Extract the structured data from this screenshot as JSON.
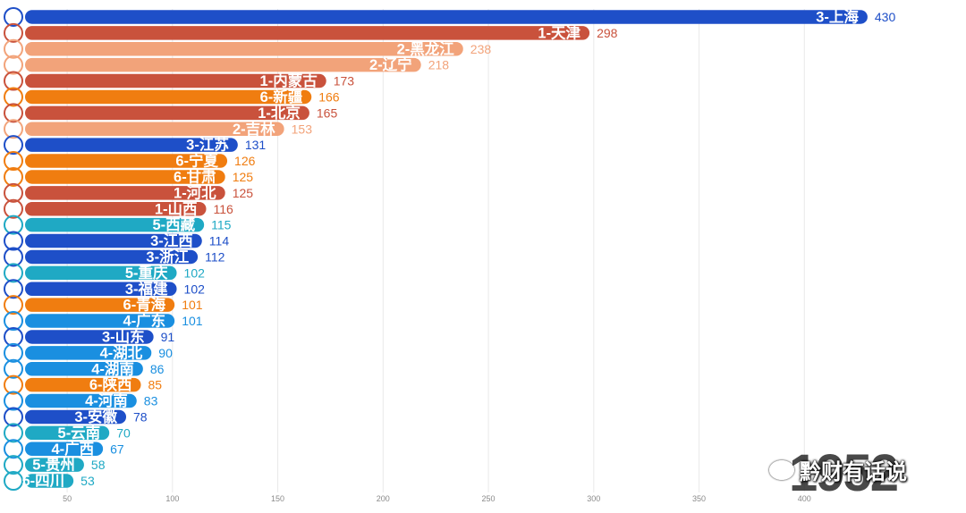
{
  "chart_data": {
    "type": "bar",
    "orientation": "horizontal",
    "xlim": [
      30,
      450
    ],
    "x_ticks": [
      50,
      100,
      150,
      200,
      250,
      300,
      350,
      400
    ],
    "grid": true,
    "categories": [
      "3-上海",
      "1-天津",
      "2-黑龙江",
      "2-辽宁",
      "1-内蒙古",
      "6-新疆",
      "1-北京",
      "2-吉林",
      "3-江苏",
      "6-宁夏",
      "6-甘肃",
      "1-河北",
      "1-山西",
      "5-西藏",
      "3-江西",
      "3-浙江",
      "5-重庆",
      "3-福建",
      "6-青海",
      "4-广东",
      "3-山东",
      "4-湖北",
      "4-湖南",
      "6-陕西",
      "4-河南",
      "3-安徽",
      "5-云南",
      "4-广西",
      "5-贵州",
      "5-四川"
    ],
    "values": [
      430,
      298,
      238,
      218,
      173,
      166,
      165,
      153,
      131,
      126,
      125,
      125,
      116,
      115,
      114,
      112,
      102,
      102,
      101,
      101,
      91,
      90,
      86,
      85,
      83,
      78,
      70,
      67,
      58,
      53
    ],
    "group_colors": {
      "1": "#c9523c",
      "2": "#f2a37a",
      "3": "#1e4fc8",
      "4": "#1a8fe0",
      "5": "#1fa9c4",
      "6": "#f07d10"
    },
    "year": "1952"
  },
  "watermark": {
    "text": "黔财有话说"
  }
}
